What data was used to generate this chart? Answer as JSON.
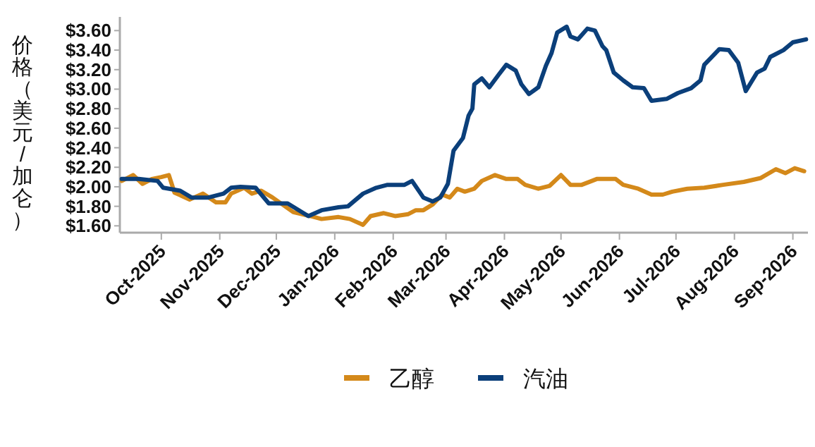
{
  "chart_data": {
    "type": "line",
    "ylabel": "价格（美元/加仑）",
    "xlim": [
      "2025-09-09",
      "2026-09-09"
    ],
    "ylim": [
      1.53,
      3.74
    ],
    "xticks": [
      {
        "value": "2025-10-01",
        "label": "Oct-2025"
      },
      {
        "value": "2025-11-01",
        "label": "Nov-2025"
      },
      {
        "value": "2025-12-01",
        "label": "Dec-2025"
      },
      {
        "value": "2026-01-01",
        "label": "Jan-2026"
      },
      {
        "value": "2026-02-01",
        "label": "Feb-2026"
      },
      {
        "value": "2026-03-01",
        "label": "Mar-2026"
      },
      {
        "value": "2026-04-01",
        "label": "Apr-2026"
      },
      {
        "value": "2026-05-01",
        "label": "May-2026"
      },
      {
        "value": "2026-06-01",
        "label": "Jun-2026"
      },
      {
        "value": "2026-07-01",
        "label": "Jul-2026"
      },
      {
        "value": "2026-08-01",
        "label": "Aug-2026"
      },
      {
        "value": "2026-09-01",
        "label": "Sep-2026"
      }
    ],
    "yticks": [
      {
        "value": 1.6,
        "label": "$1.60"
      },
      {
        "value": 1.8,
        "label": "$1.80"
      },
      {
        "value": 2.0,
        "label": "$2.00"
      },
      {
        "value": 2.2,
        "label": "$2.20"
      },
      {
        "value": 2.4,
        "label": "$2.40"
      },
      {
        "value": 2.6,
        "label": "$2.60"
      },
      {
        "value": 2.8,
        "label": "$2.80"
      },
      {
        "value": 3.0,
        "label": "$3.00"
      },
      {
        "value": 3.2,
        "label": "$3.20"
      },
      {
        "value": 3.4,
        "label": "$3.40"
      },
      {
        "value": 3.6,
        "label": "$3.60"
      }
    ],
    "grid": false,
    "legend": "bottom",
    "line_style": "solid",
    "marker": "none",
    "series": [
      {
        "name": "乙醇",
        "color": "#d4891a",
        "x": [
          "2025-09-10",
          "2025-09-16",
          "2025-09-21",
          "2025-09-26",
          "2025-10-01",
          "2025-10-05",
          "2025-10-08",
          "2025-10-16",
          "2025-10-23",
          "2025-10-30",
          "2025-11-04",
          "2025-11-07",
          "2025-11-14",
          "2025-11-18",
          "2025-11-23",
          "2025-11-29",
          "2025-12-10",
          "2025-12-19",
          "2025-12-25",
          "2026-01-03",
          "2026-01-09",
          "2026-01-16",
          "2026-01-20",
          "2026-01-27",
          "2026-02-02",
          "2026-02-09",
          "2026-02-13",
          "2026-02-17",
          "2026-02-22",
          "2026-02-27",
          "2026-03-03",
          "2026-03-07",
          "2026-03-11",
          "2026-03-16",
          "2026-03-20",
          "2026-03-27",
          "2026-04-02",
          "2026-04-08",
          "2026-04-12",
          "2026-04-19",
          "2026-04-25",
          "2026-05-01",
          "2026-05-06",
          "2026-05-12",
          "2026-05-20",
          "2026-05-30",
          "2026-06-03",
          "2026-06-11",
          "2026-06-18",
          "2026-06-24",
          "2026-06-29",
          "2026-07-07",
          "2026-07-16",
          "2026-07-26",
          "2026-08-06",
          "2026-08-15",
          "2026-08-23",
          "2026-08-28",
          "2026-09-02",
          "2026-09-07"
        ],
        "values": [
          2.06,
          2.12,
          2.03,
          2.08,
          2.1,
          2.12,
          1.94,
          1.87,
          1.93,
          1.84,
          1.84,
          1.93,
          1.99,
          1.93,
          1.96,
          1.89,
          1.74,
          1.7,
          1.67,
          1.69,
          1.67,
          1.61,
          1.7,
          1.73,
          1.7,
          1.72,
          1.76,
          1.76,
          1.82,
          1.92,
          1.89,
          1.98,
          1.95,
          1.98,
          2.06,
          2.12,
          2.08,
          2.08,
          2.02,
          1.98,
          2.01,
          2.12,
          2.02,
          2.02,
          2.08,
          2.08,
          2.02,
          1.98,
          1.92,
          1.92,
          1.95,
          1.98,
          1.99,
          2.02,
          2.05,
          2.09,
          2.18,
          2.14,
          2.19,
          2.16
        ]
      },
      {
        "name": "汽油",
        "color": "#0b3f7a",
        "x": [
          "2025-09-10",
          "2025-09-19",
          "2025-09-29",
          "2025-10-02",
          "2025-10-11",
          "2025-10-17",
          "2025-10-26",
          "2025-11-03",
          "2025-11-07",
          "2025-11-12",
          "2025-11-20",
          "2025-11-27",
          "2025-12-07",
          "2025-12-18",
          "2025-12-25",
          "2026-01-03",
          "2026-01-08",
          "2026-01-16",
          "2026-01-23",
          "2026-01-29",
          "2026-02-07",
          "2026-02-11",
          "2026-02-17",
          "2026-02-22",
          "2026-02-26",
          "2026-03-02",
          "2026-03-05",
          "2026-03-10",
          "2026-03-13",
          "2026-03-15",
          "2026-03-16",
          "2026-03-20",
          "2026-03-24",
          "2026-03-29",
          "2026-04-02",
          "2026-04-07",
          "2026-04-10",
          "2026-04-14",
          "2026-04-19",
          "2026-04-23",
          "2026-04-26",
          "2026-04-29",
          "2026-05-04",
          "2026-05-06",
          "2026-05-10",
          "2026-05-15",
          "2026-05-19",
          "2026-05-23",
          "2026-05-25",
          "2026-05-29",
          "2026-06-03",
          "2026-06-08",
          "2026-06-14",
          "2026-06-18",
          "2026-06-26",
          "2026-07-02",
          "2026-07-09",
          "2026-07-14",
          "2026-07-16",
          "2026-07-24",
          "2026-07-29",
          "2026-08-03",
          "2026-08-07",
          "2026-08-13",
          "2026-08-17",
          "2026-08-20",
          "2026-08-27",
          "2026-09-01",
          "2026-09-08"
        ],
        "values": [
          2.08,
          2.08,
          2.06,
          1.99,
          1.96,
          1.89,
          1.89,
          1.93,
          1.99,
          2.0,
          1.99,
          1.83,
          1.83,
          1.7,
          1.76,
          1.79,
          1.8,
          1.93,
          1.99,
          2.02,
          2.02,
          2.06,
          1.89,
          1.85,
          1.89,
          2.03,
          2.37,
          2.5,
          2.73,
          2.8,
          3.05,
          3.11,
          3.02,
          3.15,
          3.25,
          3.19,
          3.05,
          2.95,
          3.02,
          3.24,
          3.37,
          3.58,
          3.64,
          3.54,
          3.51,
          3.62,
          3.6,
          3.44,
          3.4,
          3.17,
          3.09,
          3.02,
          3.01,
          2.88,
          2.9,
          2.96,
          3.01,
          3.09,
          3.25,
          3.41,
          3.4,
          3.27,
          2.98,
          3.17,
          3.21,
          3.33,
          3.4,
          3.48,
          3.51
        ]
      }
    ]
  }
}
